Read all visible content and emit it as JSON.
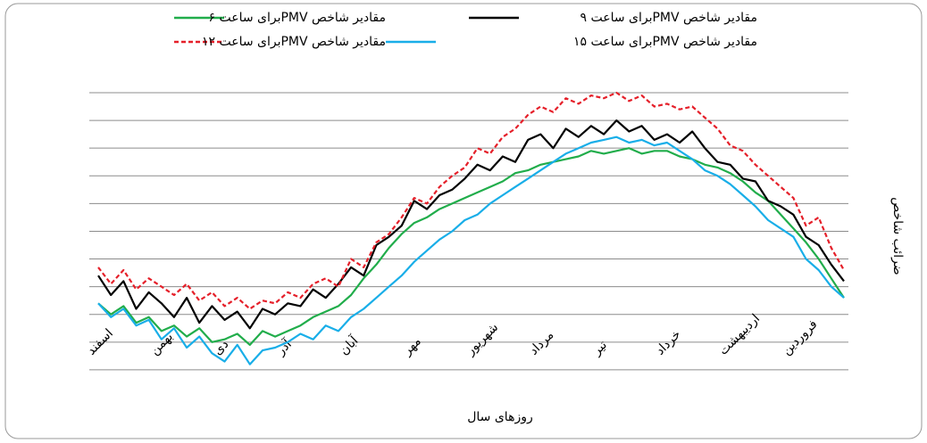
{
  "chart_data": {
    "type": "line",
    "x_label": "روزهای سال",
    "y_label": "ضرائب شاخص",
    "categories": [
      "اسفند",
      null,
      null,
      null,
      null,
      "بهمن",
      null,
      null,
      null,
      null,
      "دی",
      null,
      null,
      null,
      null,
      "آذر",
      null,
      null,
      null,
      null,
      "آبان",
      null,
      null,
      null,
      null,
      "مهر",
      null,
      null,
      null,
      null,
      "شهریور",
      null,
      null,
      null,
      null,
      "مرداد",
      null,
      null,
      null,
      null,
      "تیر",
      null,
      null,
      null,
      null,
      "خرداد",
      null,
      null,
      null,
      null,
      "اردیبهشت",
      null,
      null,
      null,
      null,
      "فروردین",
      null,
      null,
      null,
      null
    ],
    "series": [
      {
        "name": "مقادیر شاخص PMVبرای ساعت ۶",
        "color": "#21ad4b",
        "dashed": false,
        "values": [
          3.4,
          3.0,
          3.3,
          2.7,
          2.9,
          2.4,
          2.6,
          2.2,
          2.5,
          2.0,
          2.1,
          2.3,
          1.9,
          2.4,
          2.2,
          2.4,
          2.6,
          2.9,
          3.1,
          3.3,
          3.7,
          4.3,
          4.8,
          5.4,
          5.9,
          6.3,
          6.5,
          6.8,
          7.0,
          7.2,
          7.4,
          7.6,
          7.8,
          8.1,
          8.2,
          8.4,
          8.5,
          8.6,
          8.7,
          8.9,
          8.8,
          8.9,
          9.0,
          8.8,
          8.9,
          8.9,
          8.7,
          8.6,
          8.4,
          8.3,
          8.1,
          7.8,
          7.4,
          7.1,
          6.6,
          6.1,
          5.6,
          5.0,
          4.3,
          3.6
        ]
      },
      {
        "name": "مقادیر شاخص PMVبرای ساعت ۹",
        "color": "#000000",
        "dashed": false,
        "values": [
          4.4,
          3.7,
          4.2,
          3.2,
          3.8,
          3.4,
          2.9,
          3.6,
          2.7,
          3.3,
          2.8,
          3.1,
          2.5,
          3.2,
          3.0,
          3.4,
          3.3,
          3.9,
          3.6,
          4.1,
          4.7,
          4.4,
          5.5,
          5.8,
          6.2,
          7.1,
          6.8,
          7.3,
          7.5,
          7.9,
          8.4,
          8.2,
          8.7,
          8.5,
          9.3,
          9.5,
          9.0,
          9.7,
          9.4,
          9.8,
          9.5,
          10.0,
          9.6,
          9.8,
          9.3,
          9.5,
          9.2,
          9.6,
          9.0,
          8.5,
          8.4,
          7.9,
          7.8,
          7.1,
          6.9,
          6.6,
          5.8,
          5.5,
          4.8,
          4.2
        ]
      },
      {
        "name": "مقادیر شاخص PMVبرای ساعت ۱۲",
        "color": "#e5202a",
        "dashed": true,
        "values": [
          4.7,
          4.1,
          4.6,
          3.9,
          4.3,
          4.0,
          3.7,
          4.1,
          3.5,
          3.8,
          3.3,
          3.6,
          3.2,
          3.5,
          3.4,
          3.8,
          3.6,
          4.1,
          4.3,
          4.0,
          5.0,
          4.7,
          5.6,
          5.9,
          6.5,
          7.2,
          7.0,
          7.6,
          8.0,
          8.3,
          9.0,
          8.8,
          9.4,
          9.7,
          10.2,
          10.5,
          10.3,
          10.8,
          10.6,
          10.9,
          10.8,
          11.0,
          10.7,
          10.9,
          10.5,
          10.6,
          10.4,
          10.5,
          10.1,
          9.7,
          9.1,
          8.9,
          8.4,
          8.0,
          7.6,
          7.2,
          6.2,
          6.5,
          5.4,
          4.6
        ]
      },
      {
        "name": "مقادیر شاخص PMVبرای ساعت ۱۵",
        "color": "#19aee8",
        "dashed": false,
        "values": [
          3.4,
          2.9,
          3.2,
          2.6,
          2.8,
          2.1,
          2.5,
          1.8,
          2.2,
          1.6,
          1.3,
          1.9,
          1.2,
          1.7,
          1.8,
          2.0,
          2.3,
          2.1,
          2.6,
          2.4,
          2.9,
          3.2,
          3.6,
          4.0,
          4.4,
          4.9,
          5.3,
          5.7,
          6.0,
          6.4,
          6.6,
          7.0,
          7.3,
          7.6,
          7.9,
          8.2,
          8.5,
          8.8,
          9.0,
          9.2,
          9.3,
          9.4,
          9.2,
          9.3,
          9.1,
          9.2,
          8.9,
          8.6,
          8.2,
          8.0,
          7.7,
          7.3,
          6.9,
          6.4,
          6.1,
          5.8,
          5.0,
          4.6,
          4.0,
          3.6
        ]
      }
    ],
    "ylim": [
      0,
      11
    ],
    "yticks": [
      1,
      2,
      3,
      4,
      5,
      6,
      7,
      8,
      9,
      10,
      11
    ],
    "grid": true
  }
}
